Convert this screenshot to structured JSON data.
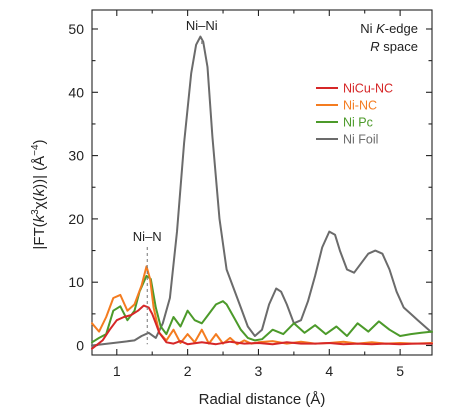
{
  "chart_data": {
    "type": "line",
    "title": "",
    "xlabel": "Radial distance (Å)",
    "ylabel": "|FT(k³χ(k))| (Å⁻⁴)",
    "ylabel_parts": {
      "pre": "|FT(",
      "k1": "k",
      "sup3": "3",
      "mid": "χ(",
      "k2": "k",
      "post": "))| (Å",
      "supExp": "−4",
      "end": ")"
    },
    "xlim": [
      0.65,
      5.45
    ],
    "ylim": [
      -1.5,
      53
    ],
    "xticks": [
      1,
      2,
      3,
      4,
      5
    ],
    "xtick_labels": [
      "1",
      "2",
      "3",
      "4",
      "5"
    ],
    "yticks": [
      0,
      10,
      20,
      30,
      40,
      50
    ],
    "ytick_labels": [
      "0",
      "10",
      "20",
      "30",
      "40",
      "50"
    ],
    "grid": false,
    "legend_position": "top-right",
    "annotations": {
      "edge_line1_pre": "Ni ",
      "edge_line1_k": "K",
      "edge_line1_post": "-edge",
      "edge_line2_r": "R",
      "edge_line2_post": " space",
      "ni_ni": "Ni–Ni",
      "ni_n": "Ni–N"
    },
    "series": [
      {
        "name": "NiCu-NC",
        "color": "#d62728",
        "x": [
          0.65,
          0.8,
          0.9,
          1.0,
          1.1,
          1.2,
          1.3,
          1.38,
          1.45,
          1.5,
          1.55,
          1.6,
          1.7,
          1.8,
          1.9,
          2.0,
          2.2,
          2.4,
          2.6,
          2.8,
          3.0,
          3.2,
          3.4,
          3.6,
          3.8,
          4.0,
          4.2,
          4.4,
          4.6,
          4.8,
          5.0,
          5.2,
          5.45
        ],
        "y": [
          -0.5,
          0.8,
          2.5,
          4.0,
          4.5,
          4.8,
          5.5,
          6.3,
          6.0,
          5.0,
          3.5,
          2.0,
          0.5,
          0.3,
          0.7,
          0.2,
          0.5,
          0.2,
          0.6,
          0.3,
          0.4,
          0.2,
          0.5,
          0.3,
          0.3,
          0.4,
          0.2,
          0.3,
          0.2,
          0.3,
          0.2,
          0.3,
          0.3
        ]
      },
      {
        "name": "Ni-NC",
        "color": "#f47c20",
        "x": [
          0.65,
          0.75,
          0.85,
          0.95,
          1.05,
          1.15,
          1.25,
          1.35,
          1.42,
          1.47,
          1.52,
          1.6,
          1.7,
          1.8,
          1.9,
          2.0,
          2.1,
          2.2,
          2.3,
          2.4,
          2.5,
          2.6,
          2.7,
          2.8,
          2.9,
          3.0,
          3.2,
          3.4,
          3.6,
          3.8,
          4.0,
          4.2,
          4.4,
          4.6,
          4.8,
          5.0,
          5.2,
          5.45
        ],
        "y": [
          3.5,
          2.2,
          4.5,
          7.5,
          8.0,
          5.5,
          6.5,
          9.5,
          12.5,
          10.5,
          6.0,
          2.0,
          0.8,
          2.5,
          0.4,
          1.8,
          0.5,
          2.5,
          0.3,
          1.8,
          0.3,
          1.2,
          0.2,
          0.8,
          0.3,
          0.5,
          0.7,
          0.3,
          0.6,
          0.3,
          0.4,
          0.6,
          0.3,
          0.5,
          0.3,
          0.4,
          0.3,
          0.4
        ]
      },
      {
        "name": "Ni Pc",
        "color": "#4c9a2a",
        "x": [
          0.65,
          0.75,
          0.85,
          0.95,
          1.05,
          1.15,
          1.25,
          1.32,
          1.42,
          1.48,
          1.55,
          1.62,
          1.7,
          1.8,
          1.9,
          2.0,
          2.1,
          2.2,
          2.3,
          2.4,
          2.5,
          2.55,
          2.65,
          2.75,
          2.85,
          2.95,
          3.05,
          3.2,
          3.35,
          3.5,
          3.65,
          3.8,
          3.95,
          4.1,
          4.25,
          4.4,
          4.55,
          4.7,
          4.85,
          5.0,
          5.15,
          5.3,
          5.45
        ],
        "y": [
          0.5,
          1.2,
          1.8,
          5.5,
          6.2,
          4.0,
          5.5,
          8.5,
          11.0,
          10.5,
          6.0,
          3.0,
          1.8,
          4.5,
          3.0,
          5.5,
          4.0,
          3.5,
          5.0,
          6.5,
          7.0,
          6.5,
          4.5,
          2.5,
          1.2,
          0.8,
          1.0,
          2.5,
          1.8,
          3.5,
          2.0,
          3.2,
          1.8,
          3.0,
          1.5,
          3.5,
          2.2,
          3.8,
          2.5,
          1.5,
          1.8,
          2.0,
          2.2
        ]
      },
      {
        "name": "Ni Foil",
        "color": "#6b6b6b",
        "x": [
          0.65,
          0.8,
          0.95,
          1.1,
          1.25,
          1.35,
          1.45,
          1.55,
          1.65,
          1.75,
          1.85,
          1.95,
          2.05,
          2.12,
          2.18,
          2.22,
          2.28,
          2.35,
          2.45,
          2.55,
          2.65,
          2.75,
          2.85,
          2.95,
          3.05,
          3.15,
          3.25,
          3.32,
          3.4,
          3.5,
          3.6,
          3.7,
          3.8,
          3.9,
          4.0,
          4.08,
          4.15,
          4.25,
          4.35,
          4.45,
          4.55,
          4.65,
          4.75,
          4.85,
          4.95,
          5.05,
          5.15,
          5.25,
          5.35,
          5.45
        ],
        "y": [
          0.0,
          0.2,
          0.4,
          0.6,
          0.8,
          1.5,
          2.0,
          1.2,
          3.5,
          7.5,
          18.0,
          32.0,
          43.0,
          47.5,
          48.8,
          48.0,
          44.0,
          33.0,
          20.0,
          12.0,
          9.0,
          6.0,
          3.0,
          1.5,
          2.5,
          6.5,
          9.0,
          8.5,
          6.5,
          3.5,
          4.0,
          7.0,
          11.0,
          15.5,
          18.0,
          17.5,
          15.0,
          12.0,
          11.5,
          13.0,
          14.5,
          15.0,
          14.5,
          12.0,
          8.5,
          6.0,
          5.0,
          4.0,
          3.0,
          2.0
        ]
      }
    ]
  }
}
